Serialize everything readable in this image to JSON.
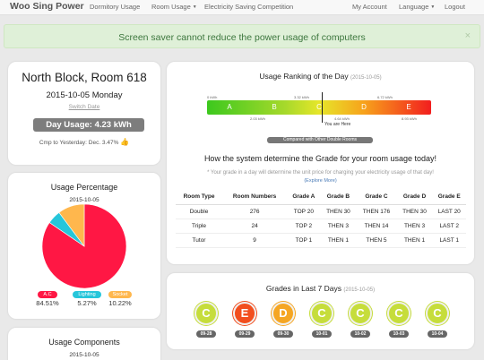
{
  "navbar": {
    "brand": "Woo Sing Power",
    "links": [
      "Dormitory Usage",
      "Room Usage",
      "Electricity Saving Competition"
    ],
    "right_links": [
      "My Account",
      "Language",
      "Logout"
    ]
  },
  "alert": {
    "message": "Screen saver cannot reduce the power usage of computers",
    "close": "×"
  },
  "room": {
    "title": "North Block, Room 618",
    "date": "2015-10-05 Monday",
    "switch_date": "Switch Date",
    "usage": "Day Usage: 4.23 kWh",
    "compare": "Cmp to Yesterday: Dec. 3.47%"
  },
  "usage_pct": {
    "title": "Usage Percentage",
    "date": "2015-10-05",
    "legend": [
      {
        "label": "A.C",
        "value": "84.51%",
        "color": "#ff1744"
      },
      {
        "label": "Lighting",
        "value": "5.27%",
        "color": "#26c6da"
      },
      {
        "label": "Socket",
        "value": "10.22%",
        "color": "#ffb74d"
      }
    ]
  },
  "chart_data": {
    "type": "pie",
    "categories": [
      "A.C",
      "Lighting",
      "Socket"
    ],
    "values": [
      84.51,
      5.27,
      10.22
    ],
    "colors": [
      "#ff1744",
      "#26c6da",
      "#ffb74d"
    ]
  },
  "components": {
    "title": "Usage Components",
    "date": "2015-10-05"
  },
  "ranking": {
    "title": "Usage Ranking of the Day",
    "date": "(2015-10-05)",
    "grades": [
      "A",
      "B",
      "C",
      "D",
      "E"
    ],
    "top_labels": [
      "0 kWh",
      "3.32 kWh",
      "6.72 kWh"
    ],
    "bottom_labels": [
      "2.03 kWh",
      "4.64 kWh",
      "8.93 kWh"
    ],
    "marker": "You are Here",
    "compare_button": "Compared with Other Double Rooms"
  },
  "grade_info": {
    "title": "How the system determine the Grade for your room usage today!",
    "note": "* Your grade in a day will determine the unit price for charging your electricity usage of that day!",
    "explore": "(Explore More)",
    "headers": [
      "Room Type",
      "Room Numbers",
      "Grade A",
      "Grade B",
      "Grade C",
      "Grade D",
      "Grade E"
    ],
    "rows": [
      [
        "Double",
        "276",
        "TOP 20",
        "THEN 30",
        "THEN 176",
        "THEN 30",
        "LAST 20"
      ],
      [
        "Triple",
        "24",
        "TOP 2",
        "THEN 3",
        "THEN 14",
        "THEN 3",
        "LAST 2"
      ],
      [
        "Tutor",
        "9",
        "TOP 1",
        "THEN 1",
        "THEN 5",
        "THEN 1",
        "LAST 1"
      ]
    ]
  },
  "week": {
    "title": "Grades in Last 7 Days",
    "range": "(2015-10-05)",
    "days": [
      {
        "grade": "C",
        "date": "09-28",
        "color": "#c6dd3b"
      },
      {
        "grade": "E",
        "date": "09-29",
        "color": "#f24e1e"
      },
      {
        "grade": "D",
        "date": "09-30",
        "color": "#f5a623"
      },
      {
        "grade": "C",
        "date": "10-01",
        "color": "#c6dd3b"
      },
      {
        "grade": "C",
        "date": "10-02",
        "color": "#c6dd3b"
      },
      {
        "grade": "C",
        "date": "10-03",
        "color": "#c6dd3b"
      },
      {
        "grade": "C",
        "date": "10-04",
        "color": "#c6dd3b"
      }
    ]
  }
}
